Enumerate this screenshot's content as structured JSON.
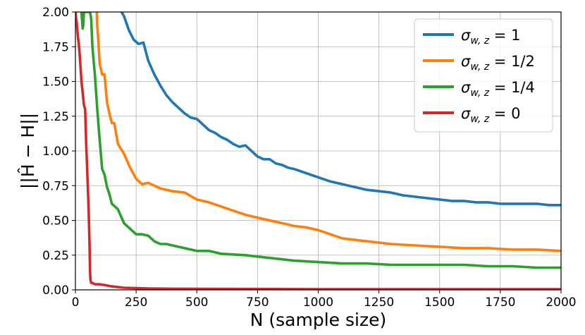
{
  "chart_data": {
    "type": "line",
    "xlabel": "N (sample size)",
    "ylabel": "||Ĥ − H||",
    "xlim": [
      0,
      2000
    ],
    "ylim": [
      0,
      2.0
    ],
    "xticks": [
      0,
      250,
      500,
      750,
      1000,
      1250,
      1500,
      1750,
      2000
    ],
    "yticks": [
      0.0,
      0.25,
      0.5,
      0.75,
      1.0,
      1.25,
      1.5,
      1.75,
      2.0
    ],
    "xtick_labels": [
      "0",
      "250",
      "500",
      "750",
      "1000",
      "1250",
      "1500",
      "1750",
      "2000"
    ],
    "ytick_labels": [
      "0.00",
      "0.25",
      "0.50",
      "0.75",
      "1.00",
      "1.25",
      "1.50",
      "1.75",
      "2.00"
    ],
    "grid": true,
    "legend_position": "top-right",
    "series": [
      {
        "name": "σw,z = 1",
        "legend_prefix": "σ",
        "legend_sub": "w, z",
        "legend_value": " = 1",
        "color": "#1f77b4",
        "x": [
          190,
          200,
          220,
          240,
          260,
          280,
          300,
          325,
          350,
          375,
          400,
          425,
          450,
          475,
          500,
          525,
          550,
          575,
          600,
          625,
          650,
          675,
          700,
          725,
          750,
          775,
          800,
          825,
          850,
          875,
          900,
          950,
          1000,
          1050,
          1100,
          1150,
          1200,
          1250,
          1300,
          1350,
          1400,
          1450,
          1500,
          1550,
          1600,
          1650,
          1700,
          1750,
          1800,
          1850,
          1900,
          1950,
          2000
        ],
        "y": [
          2.0,
          1.97,
          1.87,
          1.8,
          1.77,
          1.78,
          1.65,
          1.55,
          1.47,
          1.4,
          1.35,
          1.31,
          1.27,
          1.24,
          1.23,
          1.19,
          1.15,
          1.13,
          1.1,
          1.08,
          1.05,
          1.03,
          1.04,
          1.0,
          0.96,
          0.94,
          0.94,
          0.91,
          0.9,
          0.88,
          0.87,
          0.84,
          0.81,
          0.78,
          0.76,
          0.74,
          0.72,
          0.71,
          0.7,
          0.68,
          0.67,
          0.66,
          0.65,
          0.64,
          0.64,
          0.63,
          0.63,
          0.62,
          0.62,
          0.62,
          0.62,
          0.61,
          0.61
        ]
      },
      {
        "name": "σw,z = 1/2",
        "legend_prefix": "σ",
        "legend_sub": "w, z",
        "legend_value": " = 1/2",
        "color": "#ff7f0e",
        "x": [
          88,
          90,
          95,
          100,
          110,
          120,
          130,
          140,
          150,
          160,
          175,
          200,
          225,
          250,
          275,
          300,
          325,
          350,
          375,
          400,
          450,
          500,
          550,
          600,
          650,
          700,
          750,
          800,
          850,
          900,
          950,
          1000,
          1050,
          1100,
          1150,
          1200,
          1300,
          1400,
          1500,
          1600,
          1700,
          1800,
          1900,
          2000
        ],
        "y": [
          2.0,
          1.9,
          1.78,
          1.63,
          1.55,
          1.55,
          1.35,
          1.27,
          1.2,
          1.2,
          1.05,
          0.98,
          0.88,
          0.8,
          0.76,
          0.77,
          0.75,
          0.73,
          0.72,
          0.71,
          0.7,
          0.65,
          0.63,
          0.6,
          0.57,
          0.54,
          0.52,
          0.5,
          0.48,
          0.46,
          0.45,
          0.43,
          0.4,
          0.37,
          0.36,
          0.35,
          0.33,
          0.32,
          0.31,
          0.3,
          0.3,
          0.29,
          0.29,
          0.28
        ]
      },
      {
        "name": "σw,z = 1/4",
        "legend_prefix": "σ",
        "legend_sub": "w, z",
        "legend_value": " = 1/4",
        "color": "#2ca02c",
        "x": [
          25,
          27,
          30,
          32,
          35,
          40,
          45,
          50,
          55,
          60,
          65,
          70,
          80,
          90,
          100,
          110,
          120,
          130,
          140,
          150,
          175,
          200,
          225,
          250,
          275,
          300,
          325,
          350,
          375,
          400,
          450,
          500,
          550,
          600,
          700,
          800,
          900,
          1000,
          1100,
          1200,
          1300,
          1400,
          1500,
          1600,
          1700,
          1800,
          1900,
          2000
        ],
        "y": [
          2.0,
          1.95,
          1.88,
          1.9,
          2.0,
          2.0,
          2.0,
          2.0,
          2.0,
          2.0,
          1.95,
          1.75,
          1.55,
          1.3,
          1.08,
          0.87,
          0.83,
          0.74,
          0.69,
          0.62,
          0.58,
          0.48,
          0.44,
          0.4,
          0.4,
          0.39,
          0.35,
          0.33,
          0.33,
          0.32,
          0.3,
          0.28,
          0.28,
          0.26,
          0.25,
          0.23,
          0.21,
          0.2,
          0.19,
          0.19,
          0.18,
          0.18,
          0.18,
          0.18,
          0.17,
          0.17,
          0.16,
          0.16
        ]
      },
      {
        "name": "σw,z = 0",
        "legend_prefix": "σ",
        "legend_sub": "w, z",
        "legend_value": " = 0",
        "color": "#d62728",
        "x": [
          0,
          3,
          5,
          10,
          15,
          20,
          25,
          30,
          35,
          40,
          45,
          50,
          55,
          58,
          60,
          62,
          65,
          70,
          80,
          100,
          120,
          150,
          200,
          250,
          300,
          400,
          500,
          750,
          1000,
          1500,
          2000
        ],
        "y": [
          2.0,
          1.95,
          1.93,
          1.83,
          1.75,
          1.63,
          1.5,
          1.42,
          1.33,
          1.3,
          1.02,
          0.8,
          0.55,
          0.33,
          0.14,
          0.07,
          0.05,
          0.05,
          0.04,
          0.04,
          0.035,
          0.025,
          0.015,
          0.012,
          0.01,
          0.008,
          0.007,
          0.006,
          0.005,
          0.005,
          0.005
        ]
      }
    ]
  }
}
